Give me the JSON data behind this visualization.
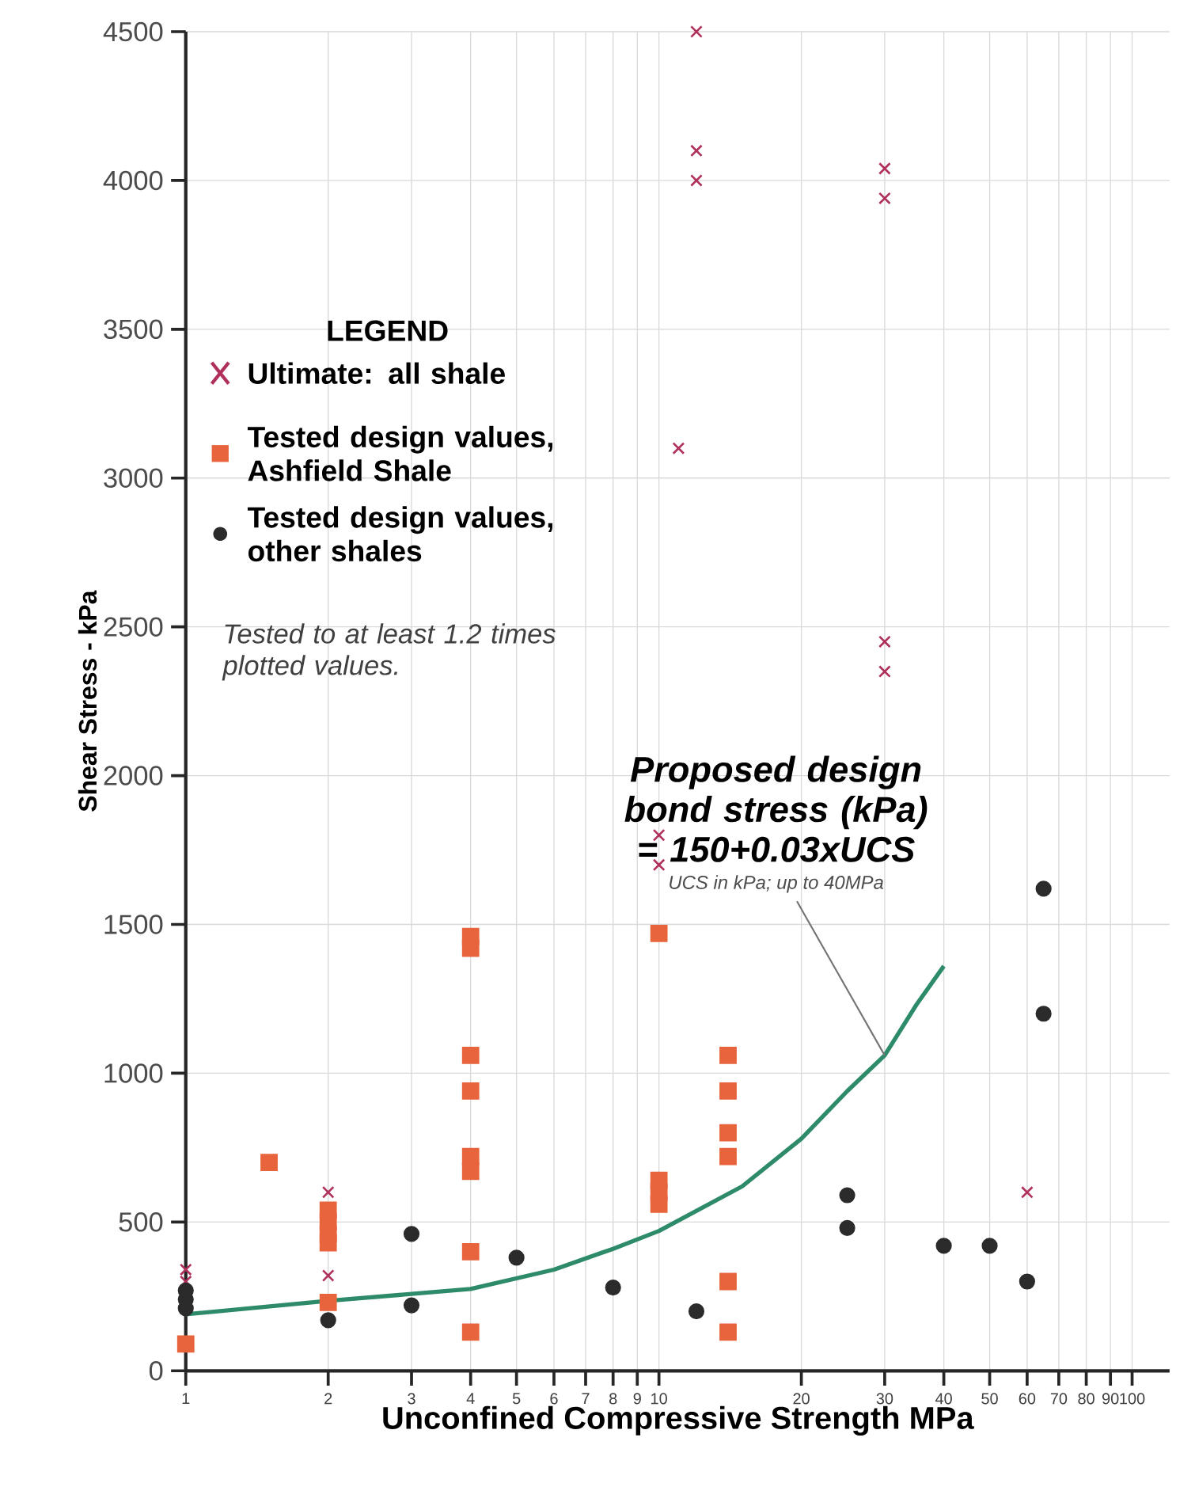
{
  "chart_data": {
    "type": "scatter",
    "xlabel": "Unconfined Compressive Strength MPa",
    "ylabel": "Shear Stress - kPa",
    "legend_title": "LEGEND",
    "log": "x",
    "grid": true,
    "legend": "left",
    "xlim": [
      1,
      120
    ],
    "ylim": [
      0,
      4500
    ],
    "xticks": [
      1,
      2,
      3,
      4,
      5,
      6,
      7,
      8,
      9,
      10,
      20,
      30,
      40,
      50,
      60,
      70,
      80,
      90,
      100
    ],
    "yticks": [
      0,
      500,
      1000,
      1500,
      2000,
      2500,
      3000,
      3500,
      4000,
      4500
    ],
    "series": [
      {
        "name": "Ultimate: all shale",
        "type": "scatter",
        "marker": "cross",
        "color": "#b0305c",
        "x": [
          12,
          12,
          12,
          11,
          30,
          30,
          30,
          30,
          10,
          10,
          2,
          2,
          1,
          1,
          60
        ],
        "values": [
          4500,
          4100,
          4000,
          3100,
          4040,
          3940,
          2450,
          2350,
          1800,
          1700,
          600,
          320,
          340,
          300,
          600
        ]
      },
      {
        "name": "Tested design values, Ashfield Shale",
        "marker": "square",
        "color": "#e8643c",
        "x": [
          1,
          1.5,
          2,
          2,
          2,
          2,
          2,
          4,
          4,
          4,
          4,
          4,
          4,
          4,
          4,
          10,
          10,
          10,
          10,
          14,
          14,
          14,
          14,
          14,
          14
        ],
        "values": [
          90,
          700,
          540,
          500,
          460,
          430,
          230,
          1460,
          1420,
          1060,
          940,
          720,
          670,
          400,
          130,
          1470,
          640,
          600,
          560,
          1060,
          940,
          800,
          720,
          300,
          130
        ]
      },
      {
        "name": "Tested design values, other shales",
        "marker": "circle",
        "color": "#2b2b2b",
        "x": [
          1,
          1,
          1,
          2,
          3,
          3,
          5,
          8,
          12,
          25,
          25,
          40,
          50,
          60,
          65,
          65
        ],
        "values": [
          270,
          240,
          210,
          170,
          460,
          220,
          380,
          280,
          200,
          590,
          480,
          420,
          420,
          300,
          1620,
          1200
        ]
      },
      {
        "type": "line",
        "marker": "none",
        "color": "#2e8b6a",
        "x": [
          1,
          2,
          4,
          6,
          8,
          10,
          15,
          20,
          25,
          30,
          35,
          40
        ],
        "values": [
          190,
          235,
          275,
          340,
          410,
          470,
          620,
          780,
          940,
          1060,
          1230,
          1360
        ]
      }
    ],
    "annotations": [
      "Tested to at least 1.2 times plotted values.",
      {
        "text": "Proposed design bond stress (kPa) = 150+0.03xUCS",
        "x": 30,
        "y": 1060
      },
      "UCS in kPa; up to 40MPa"
    ]
  }
}
